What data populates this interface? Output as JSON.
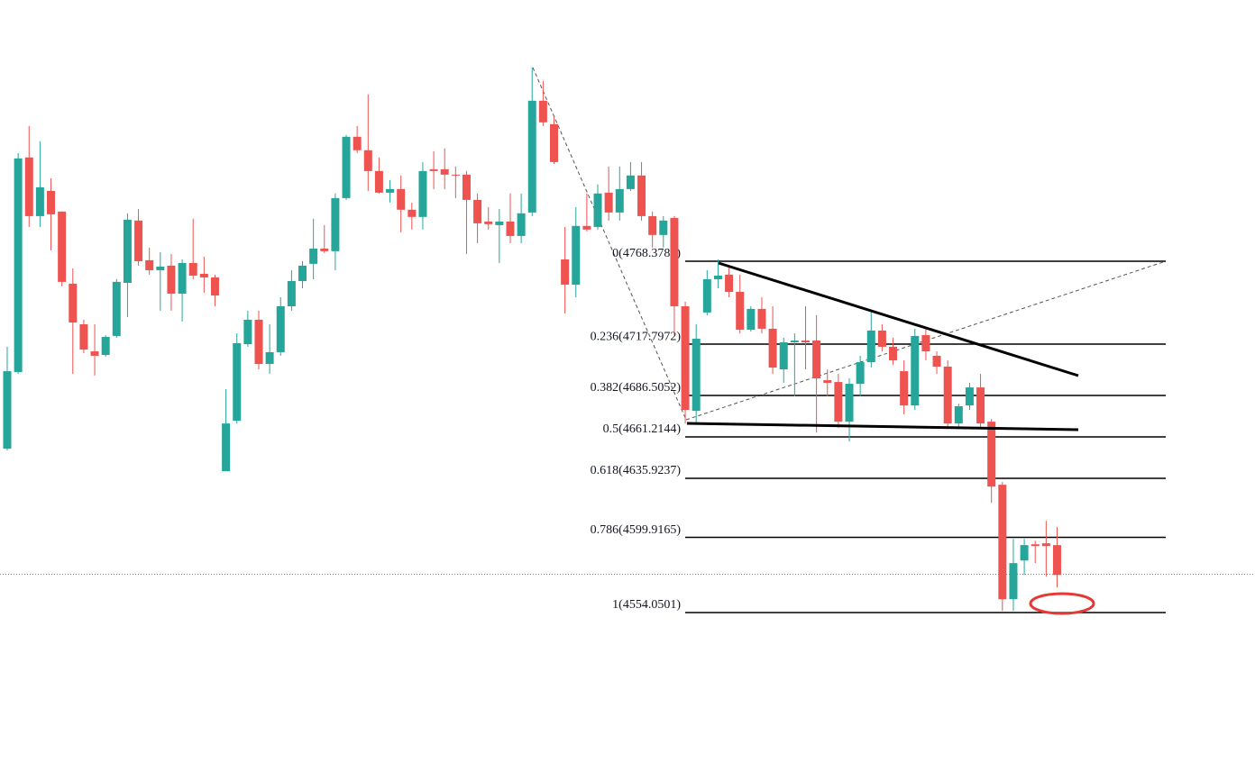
{
  "chart_data": {
    "type": "candlestick",
    "up_color": "#26a69a",
    "down_color": "#ef5350",
    "open": [
      4654.0,
      4700.8,
      4831.7,
      4795.9,
      4811.3,
      4798.7,
      4754.7,
      4729.9,
      4713.4,
      4711.2,
      4722.8,
      4755.2,
      4793.2,
      4769.0,
      4762.9,
      4765.7,
      4748.6,
      4767.3,
      4760.7,
      4758.5,
      4640.3,
      4671.1,
      4717.8,
      4732.7,
      4705.7,
      4712.9,
      4740.9,
      4756.3,
      4766.8,
      4776.1,
      4774.5,
      4806.9,
      4844.3,
      4836.1,
      4823.4,
      4810.2,
      4812.4,
      4799.8,
      4795.4,
      4824.5,
      4824.5,
      4821.2,
      4821.2,
      4805.8,
      4792.6,
      4790.4,
      4792.6,
      4783.8,
      4798.1,
      4866.3,
      4852.0,
      4769.5,
      4754.1,
      4789.9,
      4789.3,
      4810.2,
      4798.1,
      4812.4,
      4820.7,
      4795.9,
      4784.4,
      4794.8,
      4740.9,
      4677.1,
      4737.1,
      4757.4,
      4760.2,
      4749.7,
      4726.6,
      4739.3,
      4727.2,
      4702.4,
      4718.9,
      4720.0,
      4720.0,
      4695.8,
      4694.7,
      4670.5,
      4693.6,
      4706.8,
      4726.1,
      4716.2,
      4701.3,
      4680.4,
      4723.3,
      4710.7,
      4704.1,
      4669.4,
      4680.4,
      4691.4,
      4670.5,
      4632.0,
      4562.2,
      4585.8,
      4595.7,
      4596.3,
      4595.2
    ],
    "high": [
      4716.2,
      4834.4,
      4850.9,
      4841.6,
      4819.0,
      4798.7,
      4764.0,
      4732.7,
      4729.9,
      4723.3,
      4757.4,
      4797.6,
      4800.3,
      4776.7,
      4773.9,
      4772.8,
      4769.5,
      4794.3,
      4771.2,
      4760.2,
      4690.3,
      4724.4,
      4738.2,
      4738.2,
      4729.9,
      4746.4,
      4762.9,
      4768.4,
      4794.3,
      4790.4,
      4809.7,
      4845.4,
      4850.9,
      4870.2,
      4831.7,
      4817.9,
      4820.7,
      4804.2,
      4828.9,
      4835.5,
      4837.2,
      4826.2,
      4823.4,
      4809.7,
      4801.4,
      4800.3,
      4809.7,
      4809.7,
      4886.7,
      4878.4,
      4856.4,
      4789.3,
      4801.4,
      4809.7,
      4815.2,
      4826.2,
      4826.2,
      4828.9,
      4828.9,
      4798.7,
      4795.9,
      4795.9,
      4743.7,
      4729.9,
      4762.9,
      4769.5,
      4765.7,
      4760.2,
      4740.9,
      4746.4,
      4740.9,
      4721.7,
      4724.4,
      4740.9,
      4735.4,
      4702.4,
      4699.7,
      4696.9,
      4710.7,
      4738.2,
      4729.9,
      4721.7,
      4707.9,
      4727.2,
      4727.2,
      4713.4,
      4707.9,
      4681.5,
      4694.2,
      4699.7,
      4672.2,
      4633.7,
      4599.0,
      4599.0,
      4597.9,
      4610.0,
      4606.2
    ],
    "low": [
      4652.9,
      4699.7,
      4789.3,
      4789.3,
      4775.0,
      4753.0,
      4699.7,
      4712.3,
      4698.6,
      4710.1,
      4721.7,
      4734.3,
      4765.7,
      4760.2,
      4738.2,
      4738.2,
      4731.6,
      4757.4,
      4749.2,
      4740.9,
      4640.3,
      4669.4,
      4716.2,
      4702.4,
      4699.7,
      4710.7,
      4738.2,
      4751.9,
      4757.4,
      4773.4,
      4762.9,
      4805.8,
      4834.4,
      4811.3,
      4809.7,
      4804.2,
      4786.0,
      4787.7,
      4787.7,
      4812.4,
      4812.4,
      4806.9,
      4772.8,
      4779.4,
      4787.7,
      4767.3,
      4779.4,
      4779.4,
      4795.9,
      4850.9,
      4827.8,
      4736.5,
      4746.4,
      4786.6,
      4787.7,
      4793.2,
      4793.2,
      4811.3,
      4793.2,
      4776.7,
      4776.7,
      4723.3,
      4669.4,
      4669.4,
      4735.4,
      4751.9,
      4746.4,
      4724.4,
      4725.5,
      4724.4,
      4699.7,
      4694.2,
      4685.9,
      4702.4,
      4663.9,
      4685.9,
      4666.7,
      4658.4,
      4685.9,
      4703.5,
      4713.4,
      4705.2,
      4674.9,
      4677.7,
      4707.9,
      4699.7,
      4667.8,
      4667.2,
      4677.7,
      4666.7,
      4621.0,
      4555.0,
      4555.0,
      4577.0,
      4584.2,
      4575.9,
      4569.3
    ],
    "close": [
      4701.3,
      4831.1,
      4795.9,
      4813.5,
      4797.0,
      4755.8,
      4731.0,
      4714.5,
      4710.7,
      4722.2,
      4755.8,
      4793.7,
      4768.4,
      4762.9,
      4765.1,
      4748.6,
      4767.3,
      4759.6,
      4758.5,
      4747.5,
      4669.4,
      4718.4,
      4732.7,
      4705.7,
      4712.9,
      4740.9,
      4756.3,
      4765.7,
      4776.1,
      4774.5,
      4806.9,
      4844.3,
      4836.1,
      4823.4,
      4810.2,
      4812.4,
      4799.8,
      4795.4,
      4823.4,
      4823.4,
      4821.2,
      4820.7,
      4805.8,
      4791.5,
      4791.0,
      4792.6,
      4783.8,
      4797.6,
      4866.3,
      4853.1,
      4828.9,
      4754.1,
      4789.9,
      4787.7,
      4809.7,
      4798.1,
      4812.4,
      4820.7,
      4795.9,
      4784.4,
      4793.2,
      4740.9,
      4677.7,
      4721.1,
      4757.4,
      4759.6,
      4749.7,
      4726.6,
      4739.3,
      4727.2,
      4703.5,
      4718.9,
      4720.0,
      4718.9,
      4696.9,
      4694.2,
      4670.5,
      4693.6,
      4706.8,
      4726.1,
      4716.2,
      4707.9,
      4680.4,
      4722.8,
      4713.4,
      4704.1,
      4669.4,
      4679.9,
      4691.4,
      4669.4,
      4630.9,
      4562.2,
      4584.2,
      4595.2,
      4594.6,
      4594.6,
      4577.0
    ],
    "fib_levels": [
      {
        "value": 4768.3787,
        "label": "0(4768.3787)"
      },
      {
        "value": 4717.7972,
        "label": "0.236(4717.7972)"
      },
      {
        "value": 4686.5052,
        "label": "0.382(4686.5052)"
      },
      {
        "value": 4661.2144,
        "label": "0.5(4661.2144)"
      },
      {
        "value": 4635.9237,
        "label": "0.618(4635.9237)"
      },
      {
        "value": 4599.9165,
        "label": "0.786(4599.9165)"
      },
      {
        "value": 4554.0501,
        "label": "1(4554.0501)"
      }
    ]
  }
}
